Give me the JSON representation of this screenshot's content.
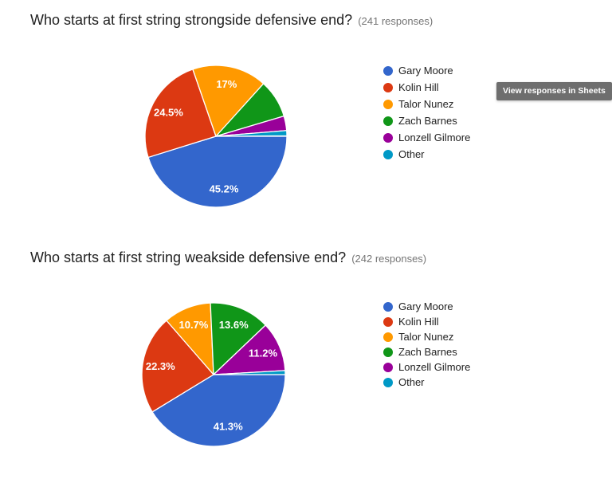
{
  "page": {
    "background": "#ffffff"
  },
  "toolbar": {
    "view_in_sheets_label": "View responses in Sheets",
    "tooltip_bg": "#6e6e6e"
  },
  "text_colors": {
    "title": "#212121",
    "responses_note": "#757575",
    "legend": "#212121",
    "slice_label": "#ffffff"
  },
  "chart_data": [
    {
      "type": "pie",
      "title": "Who starts at first string strongside defensive end?",
      "responses_note": "(241 responses)",
      "responses_count": 241,
      "legend_position": "right",
      "start_angle_deg": 90,
      "direction": "clockwise",
      "label_radius_fraction": 0.75,
      "label_min_pct": 10,
      "categories": [
        "Gary Moore",
        "Kolin Hill",
        "Talor Nunez",
        "Zach Barnes",
        "Lonzell Gilmore",
        "Other"
      ],
      "values": [
        45.2,
        24.5,
        17,
        8.7,
        3.3,
        1.2
      ],
      "slice_labels": [
        "45.2%",
        "24.5%",
        "17%",
        "",
        "",
        ""
      ],
      "colors": [
        "#3366cc",
        "#dc3912",
        "#ff9900",
        "#109618",
        "#990099",
        "#0099c6"
      ]
    },
    {
      "type": "pie",
      "title": "Who starts at first string weakside defensive end?",
      "responses_note": "(242 responses)",
      "responses_count": 242,
      "legend_position": "right",
      "start_angle_deg": 90,
      "direction": "clockwise",
      "label_radius_fraction": 0.75,
      "label_min_pct": 10,
      "categories": [
        "Gary Moore",
        "Kolin Hill",
        "Talor Nunez",
        "Zach Barnes",
        "Lonzell Gilmore",
        "Other"
      ],
      "values": [
        41.3,
        22.3,
        10.7,
        13.6,
        11.2,
        0.9
      ],
      "slice_labels": [
        "41.3%",
        "22.3%",
        "10.7%",
        "13.6%",
        "11.2%",
        ""
      ],
      "colors": [
        "#3366cc",
        "#dc3912",
        "#ff9900",
        "#109618",
        "#990099",
        "#0099c6"
      ]
    }
  ]
}
